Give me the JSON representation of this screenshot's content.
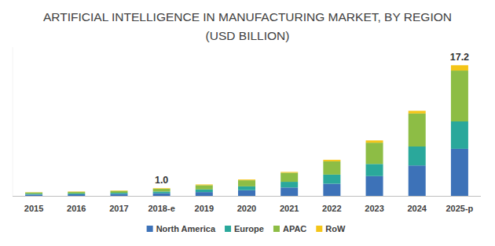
{
  "chart_data": {
    "type": "bar",
    "title": "ARTIFICIAL INTELLIGENCE IN MANUFACTURING MARKET, BY REGION",
    "subtitle": "(USD BILLION)",
    "stacked": true,
    "grid": false,
    "legend": "bottom",
    "tick_labels": "x",
    "categories": [
      "2015",
      "2016",
      "2017",
      "2018-e",
      "2019",
      "2020",
      "2021",
      "2022",
      "2023",
      "2024",
      "2025-p"
    ],
    "ylim": [
      0,
      19.6
    ],
    "series": [
      {
        "name": "North America",
        "color": "#3d72b8",
        "values": [
          0.17,
          0.2,
          0.25,
          0.35,
          0.5,
          0.75,
          1.1,
          1.6,
          2.6,
          4.0,
          6.2
        ]
      },
      {
        "name": "Europe",
        "color": "#2aa89b",
        "values": [
          0.11,
          0.13,
          0.16,
          0.22,
          0.35,
          0.5,
          0.75,
          1.2,
          1.6,
          2.5,
          3.6
        ]
      },
      {
        "name": "APAC",
        "color": "#8dbd45",
        "values": [
          0.17,
          0.2,
          0.25,
          0.36,
          0.55,
          0.8,
          1.2,
          1.75,
          2.8,
          4.35,
          6.7
        ]
      },
      {
        "name": "RoW",
        "color": "#f4c518",
        "values": [
          0.03,
          0.04,
          0.05,
          0.07,
          0.1,
          0.1,
          0.1,
          0.2,
          0.3,
          0.35,
          0.7
        ]
      }
    ],
    "annotations": [
      {
        "category": "2018-e",
        "value": 1.0,
        "label": "1.0"
      },
      {
        "category": "2025-p",
        "value": 17.2,
        "label": "17.2"
      }
    ]
  }
}
